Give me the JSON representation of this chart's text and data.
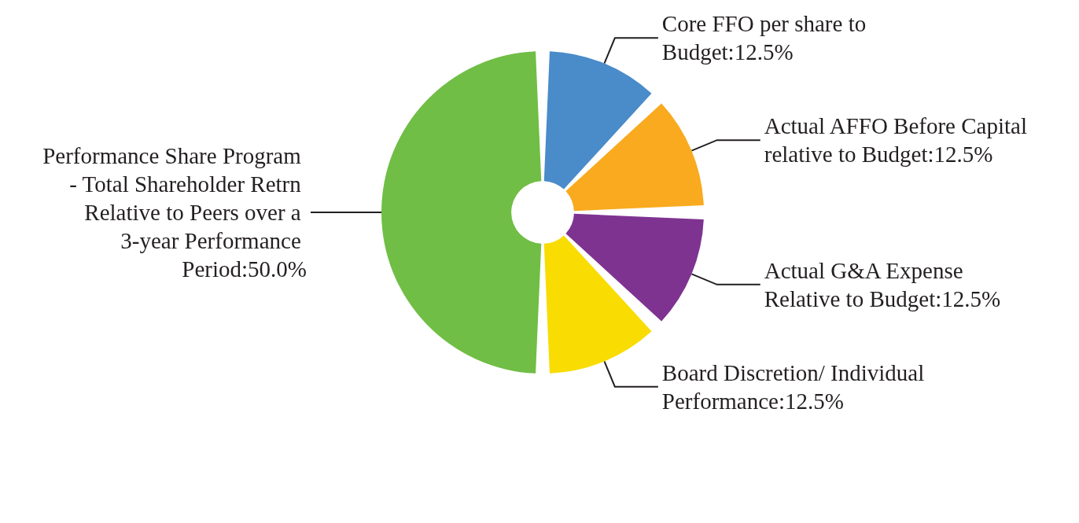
{
  "chart_data": {
    "type": "donut",
    "categories": [
      "Core FFO per share to Budget",
      "Actual AFFO Before Capital relative to Budget",
      "Actual G&A Expense Relative to Budget",
      "Board Discretion/ Individual Performance",
      "Performance Share Program - Total Shareholder Retrn Relative to Peers over a 3-year Performance Period"
    ],
    "values": [
      12.5,
      12.5,
      12.5,
      12.5,
      50.0
    ],
    "value_labels": [
      "12.5%",
      "12.5%",
      "12.5%",
      "12.5%",
      "50.0%"
    ],
    "colors": [
      "#4a8bca",
      "#f9aa1f",
      "#7e3391",
      "#f8dc02",
      "#70be45"
    ],
    "legend": false
  }
}
